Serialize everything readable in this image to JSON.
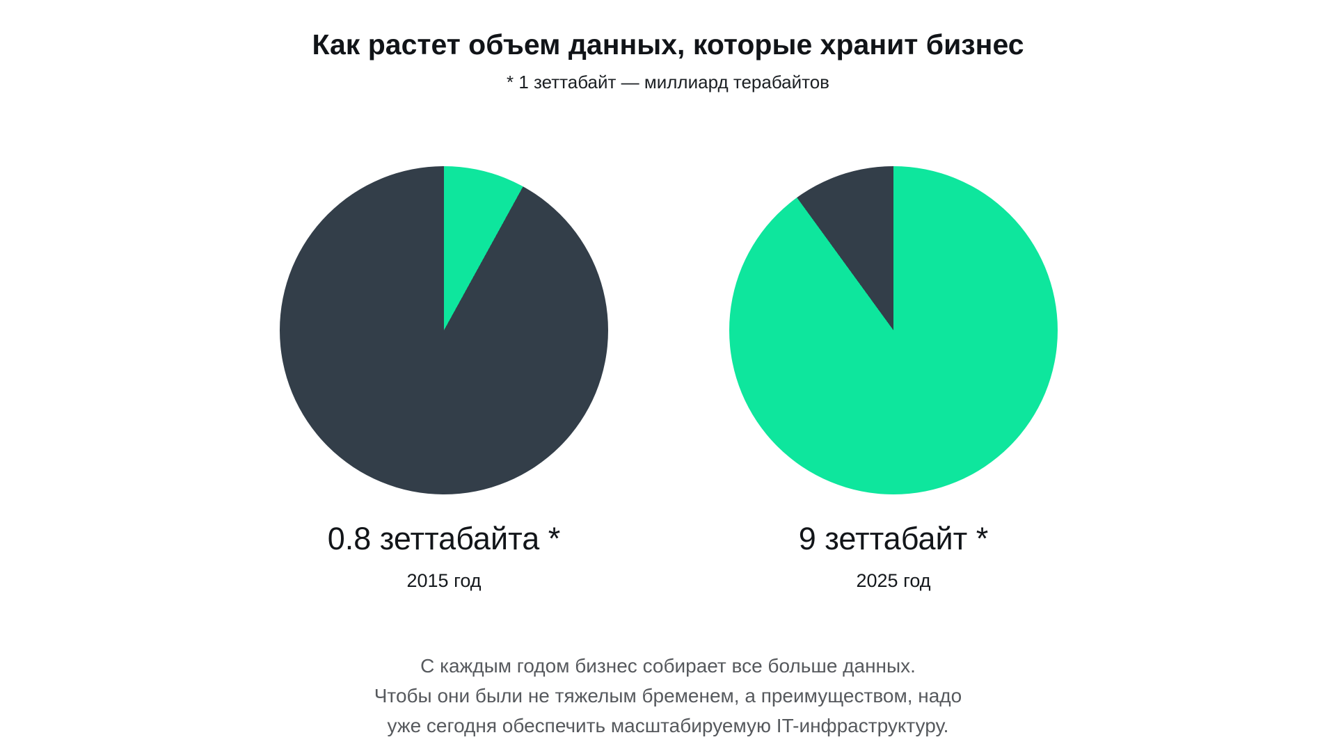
{
  "page": {
    "title": "Как растет объем данных, которые хранит бизнес",
    "subtitle": "* 1 зеттабайт — миллиард терабайтов"
  },
  "colors": {
    "accent_green": "#0ee69d",
    "dark_slate": "#333e49",
    "title_text": "#111418",
    "muted_text": "#56595d"
  },
  "chart_data": [
    {
      "type": "pie",
      "title": "0.8 зеттабайта *",
      "year_label": "2015 год",
      "value_zettabytes": 0.8,
      "highlight_fraction": 0.08,
      "legend": "off",
      "slices": [
        {
          "name": "stored-data-share",
          "fraction": 0.08,
          "color": "#0ee69d"
        },
        {
          "name": "remainder",
          "fraction": 0.92,
          "color": "#333e49"
        }
      ]
    },
    {
      "type": "pie",
      "title": "9 зеттабайт *",
      "year_label": "2025 год",
      "value_zettabytes": 9,
      "highlight_fraction": 0.9,
      "legend": "off",
      "slices": [
        {
          "name": "stored-data-share",
          "fraction": 0.9,
          "color": "#0ee69d"
        },
        {
          "name": "remainder",
          "fraction": 0.1,
          "color": "#333e49"
        }
      ]
    }
  ],
  "footer": {
    "lines": [
      "С каждым годом бизнес собирает все больше данных.",
      "Чтобы они были не тяжелым бременем, а преимуществом, надо",
      "уже сегодня обеспечить масштабируемую IT-инфраструктуру."
    ]
  }
}
